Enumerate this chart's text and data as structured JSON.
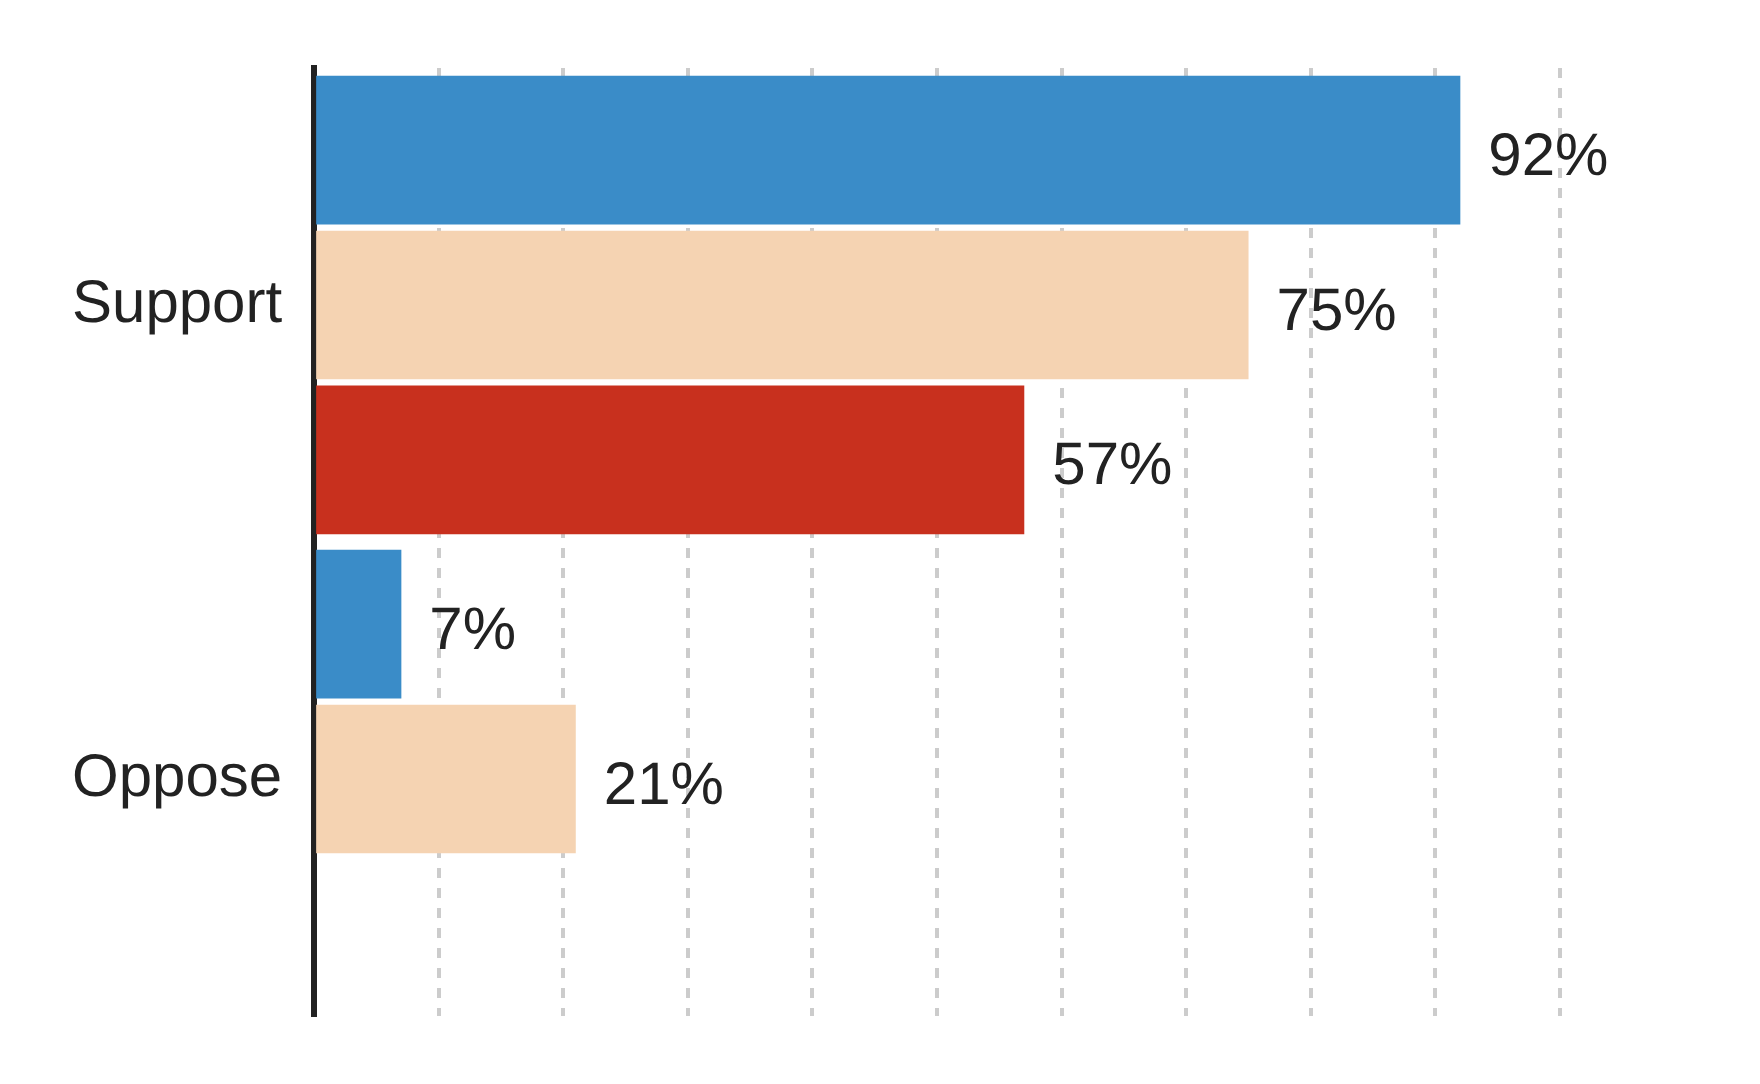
{
  "chart_data": {
    "type": "bar",
    "orientation": "horizontal",
    "categories": [
      "Support",
      "Oppose"
    ],
    "series": [
      {
        "color": "#3a8cc8",
        "values": [
          92,
          7
        ],
        "value_labels": [
          "92%",
          "7%"
        ]
      },
      {
        "color": "#f5d3b2",
        "values": [
          75,
          21
        ],
        "value_labels": [
          "75%",
          "21%"
        ]
      },
      {
        "color": "#c8301e",
        "values": [
          57,
          null
        ],
        "value_labels": [
          "57%",
          null
        ]
      }
    ],
    "xlim": [
      0,
      100
    ],
    "xticks": [
      {
        "value": 0,
        "label": null
      },
      {
        "value": 10,
        "label": null
      },
      {
        "value": 20,
        "label": null
      },
      {
        "value": 30,
        "label": null
      },
      {
        "value": 40,
        "label": null
      },
      {
        "value": 50,
        "label": null
      },
      {
        "value": 60,
        "label": null
      },
      {
        "value": 70,
        "label": null
      },
      {
        "value": 80,
        "label": null
      },
      {
        "value": 90,
        "label": null
      },
      {
        "value": 100,
        "label": null
      }
    ],
    "grid": "x",
    "legend": false,
    "tick_labels": "y"
  }
}
